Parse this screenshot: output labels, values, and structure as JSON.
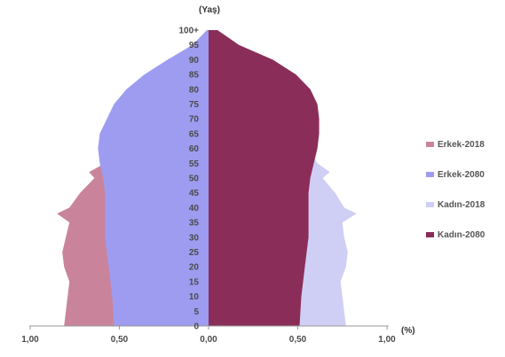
{
  "chart_data": {
    "type": "area",
    "title": "",
    "y_axis_title": "(Yaş)",
    "x_axis_unit": "(%)",
    "x_tick_labels": [
      "1,00",
      "0,50",
      "0,00",
      "0,50",
      "1,00"
    ],
    "xlim": [
      -1.0,
      1.0
    ],
    "age_tick_labels": [
      "0",
      "5",
      "10",
      "15",
      "20",
      "25",
      "30",
      "35",
      "40",
      "45",
      "50",
      "55",
      "60",
      "65",
      "70",
      "75",
      "80",
      "85",
      "90",
      "95",
      "100+"
    ],
    "age_range": [
      0,
      100
    ],
    "grid": false,
    "legend_position": "right",
    "series": [
      {
        "name": "Erkek-2018",
        "side": "left",
        "color": "#c9849c",
        "points": [
          [
            0,
            0.81
          ],
          [
            5,
            0.8
          ],
          [
            10,
            0.79
          ],
          [
            15,
            0.78
          ],
          [
            20,
            0.81
          ],
          [
            25,
            0.82
          ],
          [
            30,
            0.8
          ],
          [
            35,
            0.78
          ],
          [
            38,
            0.85
          ],
          [
            40,
            0.78
          ],
          [
            45,
            0.72
          ],
          [
            50,
            0.64
          ],
          [
            52,
            0.67
          ],
          [
            55,
            0.58
          ],
          [
            60,
            0.5
          ],
          [
            65,
            0.42
          ],
          [
            70,
            0.33
          ],
          [
            75,
            0.25
          ],
          [
            80,
            0.17
          ],
          [
            85,
            0.1
          ],
          [
            90,
            0.05
          ],
          [
            95,
            0.02
          ],
          [
            100,
            0.005
          ]
        ]
      },
      {
        "name": "Erkek-2080",
        "side": "left",
        "color": "#9e9cf0",
        "points": [
          [
            0,
            0.53
          ],
          [
            10,
            0.54
          ],
          [
            20,
            0.56
          ],
          [
            30,
            0.58
          ],
          [
            40,
            0.58
          ],
          [
            45,
            0.58
          ],
          [
            50,
            0.59
          ],
          [
            55,
            0.61
          ],
          [
            60,
            0.62
          ],
          [
            65,
            0.61
          ],
          [
            70,
            0.57
          ],
          [
            75,
            0.53
          ],
          [
            80,
            0.46
          ],
          [
            85,
            0.36
          ],
          [
            90,
            0.23
          ],
          [
            95,
            0.09
          ],
          [
            100,
            0.01
          ]
        ]
      },
      {
        "name": "Kadın-2018",
        "side": "right",
        "color": "#cfcff5",
        "points": [
          [
            0,
            0.77
          ],
          [
            5,
            0.76
          ],
          [
            10,
            0.75
          ],
          [
            15,
            0.74
          ],
          [
            20,
            0.77
          ],
          [
            25,
            0.78
          ],
          [
            30,
            0.76
          ],
          [
            35,
            0.75
          ],
          [
            38,
            0.83
          ],
          [
            40,
            0.76
          ],
          [
            45,
            0.71
          ],
          [
            50,
            0.64
          ],
          [
            52,
            0.68
          ],
          [
            55,
            0.61
          ],
          [
            60,
            0.56
          ],
          [
            65,
            0.49
          ],
          [
            70,
            0.42
          ],
          [
            75,
            0.35
          ],
          [
            80,
            0.26
          ],
          [
            85,
            0.17
          ],
          [
            90,
            0.09
          ],
          [
            95,
            0.03
          ],
          [
            100,
            0.005
          ]
        ]
      },
      {
        "name": "Kadın-2080",
        "side": "right",
        "color": "#8b2d59",
        "points": [
          [
            0,
            0.51
          ],
          [
            10,
            0.52
          ],
          [
            20,
            0.54
          ],
          [
            30,
            0.56
          ],
          [
            40,
            0.56
          ],
          [
            45,
            0.56
          ],
          [
            50,
            0.57
          ],
          [
            55,
            0.59
          ],
          [
            60,
            0.61
          ],
          [
            65,
            0.62
          ],
          [
            70,
            0.62
          ],
          [
            75,
            0.61
          ],
          [
            80,
            0.57
          ],
          [
            85,
            0.49
          ],
          [
            90,
            0.36
          ],
          [
            95,
            0.17
          ],
          [
            100,
            0.05
          ]
        ]
      }
    ]
  }
}
